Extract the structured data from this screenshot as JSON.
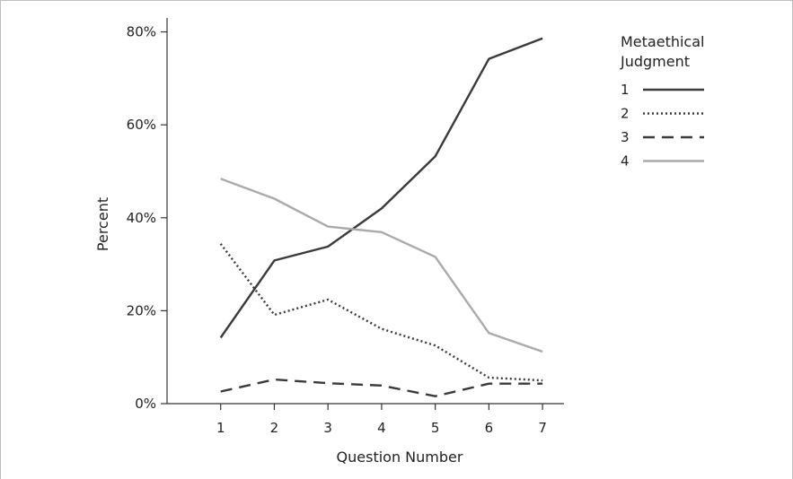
{
  "chart_data": {
    "type": "line",
    "xlabel": "Question Number",
    "ylabel": "Percent",
    "x": [
      1,
      2,
      3,
      4,
      5,
      6,
      7
    ],
    "xlim": [
      0,
      7.4
    ],
    "ylim": [
      0,
      83
    ],
    "yticks": [
      0,
      20,
      40,
      60,
      80
    ],
    "ytick_labels": [
      "0%",
      "20%",
      "40%",
      "60%",
      "80%"
    ],
    "xtick_labels": [
      "1",
      "2",
      "3",
      "4",
      "5",
      "6",
      "7"
    ],
    "grid": false,
    "legend": {
      "title_lines": [
        "Metaethical",
        "Judgment"
      ],
      "position": "top-right"
    },
    "series": [
      {
        "name": "1",
        "style": "solid",
        "color": "#3a3a3a",
        "values": [
          14.2,
          30.8,
          33.8,
          42.0,
          53.2,
          74.2,
          78.6
        ]
      },
      {
        "name": "2",
        "style": "dotted",
        "color": "#3a3a3a",
        "values": [
          34.4,
          19.1,
          22.4,
          16.1,
          12.5,
          5.6,
          5.0
        ]
      },
      {
        "name": "3",
        "style": "dashed",
        "color": "#3a3a3a",
        "values": [
          2.6,
          5.2,
          4.4,
          3.9,
          1.6,
          4.3,
          4.3
        ]
      },
      {
        "name": "4",
        "style": "solid",
        "color": "#aaaaaa",
        "values": [
          48.4,
          44.1,
          38.1,
          36.9,
          31.6,
          15.2,
          11.2
        ]
      }
    ]
  }
}
